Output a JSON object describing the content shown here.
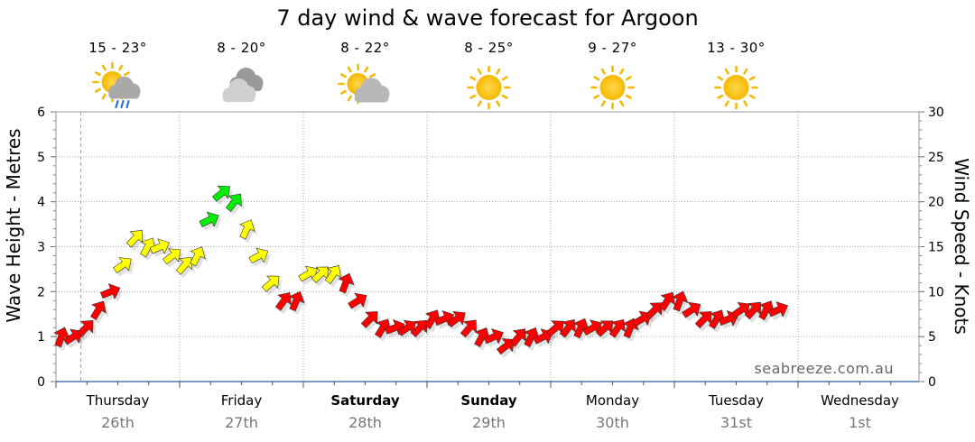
{
  "chart_data": {
    "type": "line",
    "title": "7 day wind & wave forecast for Argoon",
    "ylabel": "Wave Height - Metres",
    "ylim": [
      0,
      6
    ],
    "yticks": [
      0,
      1,
      2,
      3,
      4,
      5,
      6
    ],
    "y2label": "Wind Speed - Knots",
    "y2lim": [
      0,
      30
    ],
    "y2ticks": [
      0,
      5,
      10,
      15,
      20,
      25,
      30
    ],
    "grid": true,
    "days": [
      {
        "name": "Thursday",
        "date": "26th",
        "bold": false,
        "temp": "15 - 23°",
        "icon": "sun-cloud-rain-icon"
      },
      {
        "name": "Friday",
        "date": "27th",
        "bold": false,
        "temp": "8 - 20°",
        "icon": "cloudy-icon"
      },
      {
        "name": "Saturday",
        "date": "28th",
        "bold": true,
        "temp": "8 - 22°",
        "icon": "sun-cloud-icon"
      },
      {
        "name": "Sunday",
        "date": "29th",
        "bold": true,
        "temp": "8 - 25°",
        "icon": "sun-icon"
      },
      {
        "name": "Monday",
        "date": "30th",
        "bold": false,
        "temp": "9 - 27°",
        "icon": "sun-icon"
      },
      {
        "name": "Tuesday",
        "date": "31st",
        "bold": false,
        "temp": "13 - 30°",
        "icon": "sun-icon"
      },
      {
        "name": "Wednesday",
        "date": "1st",
        "bold": false,
        "temp": "",
        "icon": ""
      }
    ],
    "series": [
      {
        "name": "wind",
        "units": "knots",
        "x_days": [
          0.0,
          0.1,
          0.2,
          0.3,
          0.4,
          0.5,
          0.6,
          0.7,
          0.8,
          0.9,
          1.0,
          1.1,
          1.2,
          1.3,
          1.4,
          1.5,
          1.6,
          1.7,
          1.8,
          1.9,
          2.0,
          2.1,
          2.2,
          2.3,
          2.4,
          2.5,
          2.6,
          2.7,
          2.8,
          2.9,
          3.0,
          3.1,
          3.2,
          3.3,
          3.4,
          3.5,
          3.6,
          3.7,
          3.8,
          3.9,
          4.0,
          4.1,
          4.2,
          4.3,
          4.4,
          4.5,
          4.6,
          4.7,
          4.8,
          4.9,
          5.0,
          5.1,
          5.2,
          5.3,
          5.4,
          5.5,
          5.6,
          5.7,
          5.8
        ],
        "values": [
          5,
          5,
          6,
          8,
          10,
          13,
          16,
          15,
          15,
          14,
          13,
          14,
          18,
          21,
          20,
          17,
          14,
          11,
          9,
          9,
          12,
          12,
          12,
          11,
          9,
          7,
          6,
          6,
          6,
          6,
          7,
          7,
          7,
          6,
          5,
          5,
          4,
          5,
          5,
          5,
          6,
          6,
          6,
          6,
          6,
          6,
          6,
          7,
          8,
          9,
          9,
          8,
          7,
          7,
          7,
          8,
          8,
          8,
          8
        ],
        "colors": [
          "#ff0000",
          "#ff0000",
          "#ff0000",
          "#ff0000",
          "#ff0000",
          "#ffff00",
          "#ffff00",
          "#ffff00",
          "#ffff00",
          "#ffff00",
          "#ffff00",
          "#ffff00",
          "#00ee00",
          "#00ee00",
          "#00ee00",
          "#ffff00",
          "#ffff00",
          "#ffff00",
          "#ff0000",
          "#ff0000",
          "#ffff00",
          "#ffff00",
          "#ffff00",
          "#ff0000",
          "#ff0000",
          "#ff0000",
          "#ff0000",
          "#ff0000",
          "#ff0000",
          "#ff0000",
          "#ff0000",
          "#ff0000",
          "#ff0000",
          "#ff0000",
          "#ff0000",
          "#ff0000",
          "#ff0000",
          "#ff0000",
          "#ff0000",
          "#ff0000",
          "#ff0000",
          "#ff0000",
          "#ff0000",
          "#ff0000",
          "#ff0000",
          "#ff0000",
          "#ff0000",
          "#ff0000",
          "#ff0000",
          "#ff0000",
          "#ff0000",
          "#ff0000",
          "#ff0000",
          "#ff0000",
          "#ff0000",
          "#ff0000",
          "#ff0000",
          "#ff0000",
          "#ff0000"
        ]
      }
    ],
    "now_marker_day": 0.2
  },
  "brand": "seabreeze.com.au"
}
